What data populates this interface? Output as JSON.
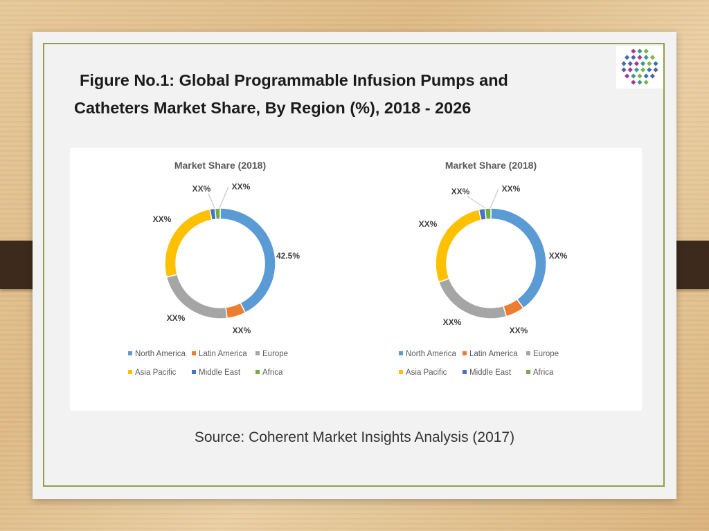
{
  "title": {
    "line1": "Figure No.1: Global Programmable Infusion Pumps and",
    "line2": "Catheters Market Share, By Region (%), 2018 - 2026"
  },
  "source": "Source: Coherent Market Insights Analysis (2017)",
  "colors": {
    "north_america": "#5b9bd5",
    "latin_america": "#ed7d31",
    "europe": "#a5a5a5",
    "asia_pacific": "#ffc000",
    "middle_east": "#4472c4",
    "africa": "#70ad47"
  },
  "logo": {
    "icon": "diamond-dots-logo-icon"
  },
  "chart_data": [
    {
      "type": "pie",
      "donut": true,
      "title": "Market Share (2018)",
      "categories": [
        "North America",
        "Latin America",
        "Europe",
        "Asia Pacific",
        "Middle East",
        "Africa"
      ],
      "values": [
        42.5,
        5.5,
        23.0,
        26.0,
        1.5,
        1.5
      ],
      "labels": [
        "42.5%",
        "XX%",
        "XX%",
        "XX%",
        "XX%",
        "XX%"
      ],
      "legend": "bottom"
    },
    {
      "type": "pie",
      "donut": true,
      "title": "Market Share (2018)",
      "categories": [
        "North America",
        "Latin America",
        "Europe",
        "Asia Pacific",
        "Middle East",
        "Africa"
      ],
      "values": [
        40.0,
        5.5,
        24.0,
        27.0,
        1.8,
        1.7
      ],
      "labels": [
        "XX%",
        "XX%",
        "XX%",
        "XX%",
        "XX%",
        "XX%"
      ],
      "legend": "bottom"
    }
  ]
}
